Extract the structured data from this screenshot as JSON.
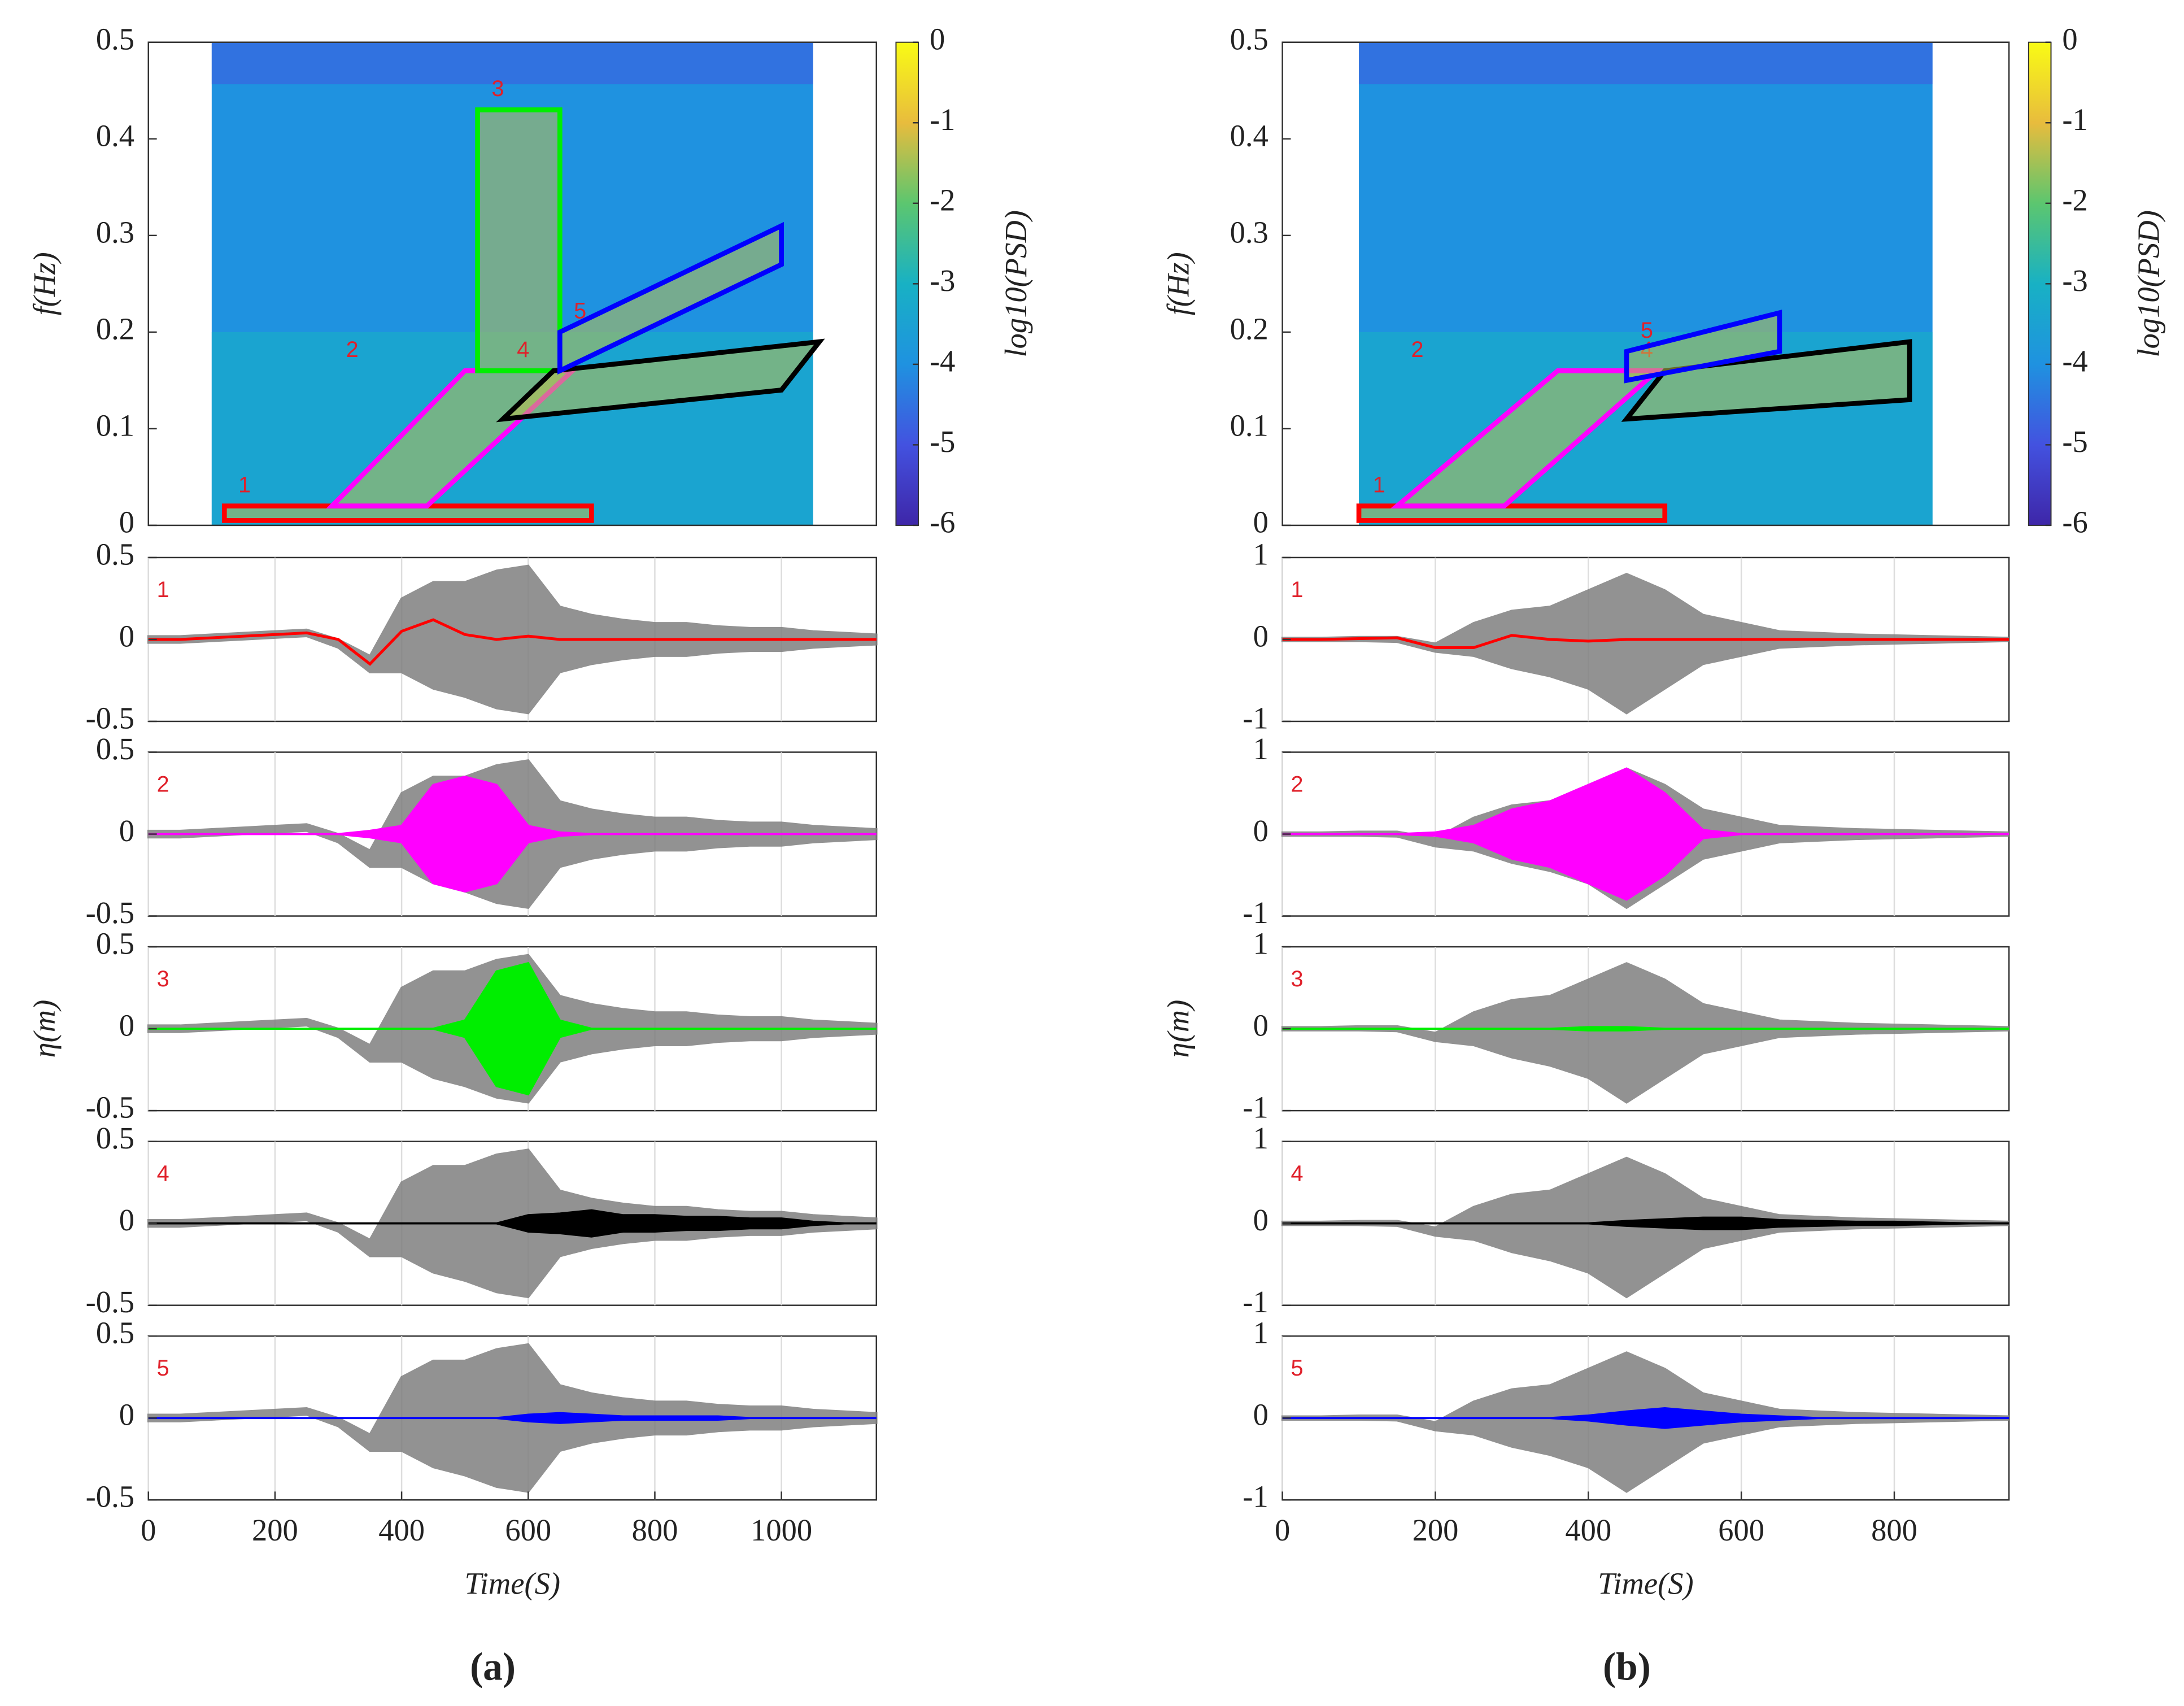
{
  "captions": [
    "(a)",
    "(b)"
  ],
  "chart_data": [
    {
      "type": "contour",
      "ylabel": "f(Hz)",
      "xlim": [
        0,
        1150
      ],
      "ylim": [
        0,
        0.5
      ],
      "yticks": [
        0,
        0.1,
        0.2,
        0.3,
        0.4,
        0.5
      ],
      "data_extent": [
        100,
        1050
      ],
      "colorbar_label": "log10(PSD)",
      "clim": [
        -6,
        0
      ],
      "cticks": [
        0,
        -1,
        -2,
        -3,
        -4,
        -5,
        -6
      ],
      "colormap": [
        "#3e26a8",
        "#4352e0",
        "#1f92e0",
        "#18b1c4",
        "#5cc66f",
        "#e8bc3d",
        "#f9fb15"
      ],
      "regions": [
        {
          "name": "1",
          "color": "#ff0000",
          "points": [
            [
              120,
              0.005
            ],
            [
              700,
              0.005
            ],
            [
              700,
              0.02
            ],
            [
              120,
              0.02
            ]
          ]
        },
        {
          "name": "2",
          "color": "#ff00ff",
          "points": [
            [
              290,
              0.02
            ],
            [
              440,
              0.02
            ],
            [
              670,
              0.16
            ],
            [
              500,
              0.16
            ]
          ]
        },
        {
          "name": "3",
          "color": "#00ee00",
          "points": [
            [
              520,
              0.16
            ],
            [
              650,
              0.16
            ],
            [
              650,
              0.43
            ],
            [
              520,
              0.43
            ]
          ]
        },
        {
          "name": "4",
          "color": "#000000",
          "points": [
            [
              560,
              0.11
            ],
            [
              1000,
              0.14
            ],
            [
              1060,
              0.19
            ],
            [
              640,
              0.16
            ]
          ]
        },
        {
          "name": "5",
          "color": "#0000ff",
          "points": [
            [
              650,
              0.16
            ],
            [
              1000,
              0.27
            ],
            [
              1000,
              0.31
            ],
            [
              650,
              0.2
            ]
          ]
        }
      ]
    },
    {
      "type": "line",
      "ylabel": "η(m)",
      "xlabel": "Time(S)",
      "xlim": [
        0,
        1150
      ],
      "xticks": [
        0,
        200,
        400,
        600,
        800,
        1000
      ],
      "ylim": [
        -0.5,
        0.5
      ],
      "yticks": [
        -0.5,
        0,
        0.5
      ],
      "grid": true,
      "x": [
        0,
        50,
        100,
        150,
        200,
        250,
        300,
        350,
        400,
        450,
        500,
        550,
        600,
        650,
        700,
        750,
        800,
        850,
        900,
        950,
        1000,
        1050,
        1100,
        1150
      ],
      "observed": {
        "color": "#808080",
        "upper": [
          0.02,
          0.02,
          0.03,
          0.04,
          0.05,
          0.06,
          0,
          -0.1,
          0.25,
          0.35,
          0.35,
          0.42,
          0.45,
          0.2,
          0.15,
          0.12,
          0.1,
          0.1,
          0.08,
          0.07,
          0.07,
          0.05,
          0.04,
          0.03
        ],
        "lower": [
          -0.02,
          -0.02,
          -0.01,
          0,
          0.01,
          0.02,
          -0.05,
          -0.2,
          -0.2,
          -0.3,
          -0.35,
          -0.42,
          -0.45,
          -0.2,
          -0.15,
          -0.12,
          -0.1,
          -0.1,
          -0.08,
          -0.07,
          -0.07,
          -0.05,
          -0.04,
          -0.03
        ]
      },
      "components": [
        {
          "name": "1",
          "color": "#ff0000",
          "values": [
            0,
            0,
            0.01,
            0.02,
            0.03,
            0.04,
            0,
            -0.15,
            0.05,
            0.12,
            0.03,
            0,
            0.02,
            0,
            0,
            0,
            0,
            0,
            0,
            0,
            0,
            0,
            0,
            0
          ]
        },
        {
          "name": "2",
          "color": "#ff00ff",
          "amplitude": [
            0,
            0,
            0,
            0,
            0,
            0,
            0,
            0.02,
            0.05,
            0.3,
            0.35,
            0.3,
            0.05,
            0.01,
            0,
            0,
            0,
            0,
            0,
            0,
            0,
            0,
            0,
            0
          ]
        },
        {
          "name": "3",
          "color": "#00ee00",
          "amplitude": [
            0,
            0,
            0,
            0,
            0,
            0,
            0,
            0,
            0,
            0,
            0.05,
            0.35,
            0.4,
            0.05,
            0,
            0,
            0,
            0,
            0,
            0,
            0,
            0,
            0,
            0
          ]
        },
        {
          "name": "4",
          "color": "#000000",
          "amplitude": [
            0,
            0,
            0,
            0,
            0,
            0,
            0,
            0,
            0,
            0,
            0,
            0,
            0.05,
            0.06,
            0.08,
            0.05,
            0.05,
            0.04,
            0.04,
            0.03,
            0.03,
            0.01,
            0,
            0
          ]
        },
        {
          "name": "5",
          "color": "#0000ff",
          "amplitude": [
            0,
            0,
            0,
            0,
            0,
            0,
            0,
            0,
            0,
            0,
            0,
            0,
            0.02,
            0.03,
            0.02,
            0.01,
            0.01,
            0.01,
            0.01,
            0,
            0,
            0,
            0,
            0
          ]
        }
      ]
    },
    {
      "type": "contour",
      "ylabel": "f(Hz)",
      "xlim": [
        0,
        950
      ],
      "ylim": [
        0,
        0.5
      ],
      "yticks": [
        0,
        0.1,
        0.2,
        0.3,
        0.4,
        0.5
      ],
      "data_extent": [
        100,
        850
      ],
      "colorbar_label": "log10(PSD)",
      "clim": [
        -6,
        0
      ],
      "cticks": [
        0,
        -1,
        -2,
        -3,
        -4,
        -5,
        -6
      ],
      "colormap": [
        "#3e26a8",
        "#4352e0",
        "#1f92e0",
        "#18b1c4",
        "#5cc66f",
        "#e8bc3d",
        "#f9fb15"
      ],
      "regions": [
        {
          "name": "1",
          "color": "#ff0000",
          "points": [
            [
              100,
              0.005
            ],
            [
              500,
              0.005
            ],
            [
              500,
              0.02
            ],
            [
              100,
              0.02
            ]
          ]
        },
        {
          "name": "2",
          "color": "#ff00ff",
          "points": [
            [
              150,
              0.02
            ],
            [
              290,
              0.02
            ],
            [
              490,
              0.16
            ],
            [
              360,
              0.16
            ]
          ]
        },
        {
          "name": "4",
          "color": "#000000",
          "points": [
            [
              450,
              0.11
            ],
            [
              820,
              0.13
            ],
            [
              820,
              0.19
            ],
            [
              500,
              0.16
            ]
          ]
        },
        {
          "name": "5",
          "color": "#0000ff",
          "points": [
            [
              450,
              0.15
            ],
            [
              650,
              0.18
            ],
            [
              650,
              0.22
            ],
            [
              450,
              0.18
            ]
          ]
        }
      ]
    },
    {
      "type": "line",
      "ylabel": "η(m)",
      "xlabel": "Time(S)",
      "xlim": [
        0,
        950
      ],
      "xticks": [
        0,
        200,
        400,
        600,
        800
      ],
      "ylim": [
        -1,
        1
      ],
      "yticks": [
        -1,
        0,
        1
      ],
      "grid": true,
      "x": [
        0,
        50,
        100,
        150,
        200,
        250,
        300,
        350,
        400,
        450,
        500,
        550,
        600,
        650,
        700,
        750,
        800,
        850,
        900,
        950
      ],
      "observed": {
        "color": "#808080",
        "upper": [
          0.02,
          0.02,
          0.03,
          0.03,
          -0.05,
          0.2,
          0.35,
          0.4,
          0.6,
          0.8,
          0.6,
          0.3,
          0.2,
          0.1,
          0.08,
          0.06,
          0.05,
          0.04,
          0.03,
          0.02
        ],
        "lower": [
          -0.02,
          -0.02,
          -0.02,
          -0.03,
          -0.15,
          -0.2,
          -0.35,
          -0.45,
          -0.6,
          -0.9,
          -0.6,
          -0.3,
          -0.2,
          -0.1,
          -0.08,
          -0.06,
          -0.05,
          -0.04,
          -0.03,
          -0.02
        ]
      },
      "components": [
        {
          "name": "1",
          "color": "#ff0000",
          "values": [
            0,
            0,
            0.01,
            0.02,
            -0.1,
            -0.1,
            0.05,
            0,
            -0.02,
            0,
            0,
            0,
            0,
            0,
            0,
            0,
            0,
            0,
            0,
            0
          ]
        },
        {
          "name": "2",
          "color": "#ff00ff",
          "amplitude": [
            0,
            0,
            0,
            0,
            0.02,
            0.1,
            0.3,
            0.4,
            0.6,
            0.8,
            0.5,
            0.05,
            0,
            0,
            0,
            0,
            0,
            0,
            0,
            0
          ]
        },
        {
          "name": "3",
          "color": "#00ee00",
          "amplitude": [
            0,
            0,
            0,
            0,
            0,
            0,
            0,
            0,
            0.02,
            0.02,
            0,
            0,
            0,
            0,
            0,
            0,
            0,
            0,
            0,
            0
          ]
        },
        {
          "name": "4",
          "color": "#000000",
          "amplitude": [
            0,
            0,
            0,
            0,
            0,
            0,
            0,
            0,
            0,
            0.03,
            0.05,
            0.07,
            0.07,
            0.04,
            0.03,
            0.02,
            0.02,
            0.01,
            0,
            0
          ]
        },
        {
          "name": "5",
          "color": "#0000ff",
          "amplitude": [
            0,
            0,
            0,
            0,
            0,
            0,
            0,
            0,
            0.03,
            0.08,
            0.12,
            0.08,
            0.04,
            0.02,
            0,
            0,
            0,
            0,
            0,
            0
          ]
        }
      ]
    }
  ]
}
